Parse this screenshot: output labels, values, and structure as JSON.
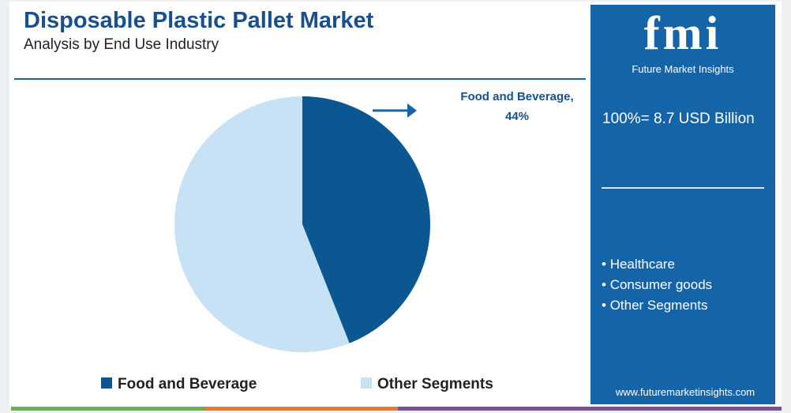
{
  "chart_data": {
    "type": "pie",
    "title": "Disposable Plastic Pallet Market",
    "subtitle": "Analysis by End Use Industry",
    "categories": [
      "Food and Beverage",
      "Other Segments"
    ],
    "values": [
      44,
      56
    ],
    "value_labels": [
      "Food and Beverage, 44%",
      null
    ],
    "colors": [
      "#0b5791",
      "#c7e2f5"
    ],
    "legend": "bottom"
  },
  "sidebar": {
    "logo": "fmi",
    "brand": "Future Market Insights",
    "total": "100%= 8.7 USD Billion",
    "bullets": [
      "Healthcare",
      "Consumer goods",
      "Other Segments"
    ],
    "website": "www.futuremarketinsights.com"
  }
}
